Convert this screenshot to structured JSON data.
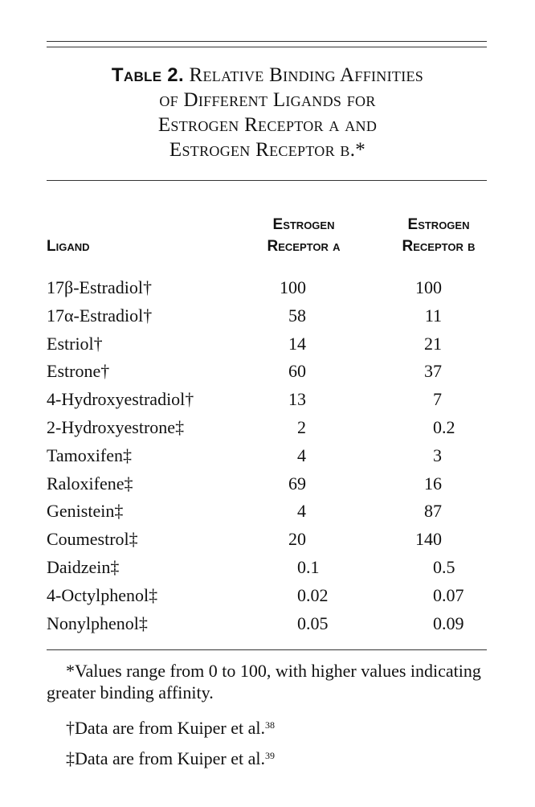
{
  "title": {
    "label": "Table 2.",
    "lines": [
      "Relative Binding Affinities",
      "of Different Ligands for",
      "Estrogen Receptor α and",
      "Estrogen Receptor β.*"
    ]
  },
  "columns": {
    "ligand": "Ligand",
    "alpha": [
      "Estrogen",
      "Receptor α"
    ],
    "beta": [
      "Estrogen",
      "Receptor β"
    ]
  },
  "rows": [
    {
      "ligand": "17β-Estradiol†",
      "alpha": "100",
      "beta": "100"
    },
    {
      "ligand": "17α-Estradiol†",
      "alpha": "58",
      "beta": "11"
    },
    {
      "ligand": "Estriol†",
      "alpha": "14",
      "beta": "21"
    },
    {
      "ligand": "Estrone†",
      "alpha": "60",
      "beta": "37"
    },
    {
      "ligand": "4-Hydroxyestradiol†",
      "alpha": "13",
      "beta": "7"
    },
    {
      "ligand": "2-Hydroxyestrone‡",
      "alpha": "2",
      "beta": "0.2"
    },
    {
      "ligand": "Tamoxifen‡",
      "alpha": "4",
      "beta": "3"
    },
    {
      "ligand": "Raloxifene‡",
      "alpha": "69",
      "beta": "16"
    },
    {
      "ligand": "Genistein‡",
      "alpha": "4",
      "beta": "87"
    },
    {
      "ligand": "Coumestrol‡",
      "alpha": "20",
      "beta": "140"
    },
    {
      "ligand": "Daidzein‡",
      "alpha": "0.1",
      "beta": "0.5"
    },
    {
      "ligand": "4-Octylphenol‡",
      "alpha": "0.02",
      "beta": "0.07"
    },
    {
      "ligand": "Nonylphenol‡",
      "alpha": "0.05",
      "beta": "0.09"
    }
  ],
  "footnotes": [
    {
      "text": "*Values range from 0 to 100, with higher values indicating greater binding affinity.",
      "ref": ""
    },
    {
      "text": "†Data are from Kuiper et al.",
      "ref": "38"
    },
    {
      "text": "‡Data are from Kuiper et al.",
      "ref": "39"
    }
  ]
}
